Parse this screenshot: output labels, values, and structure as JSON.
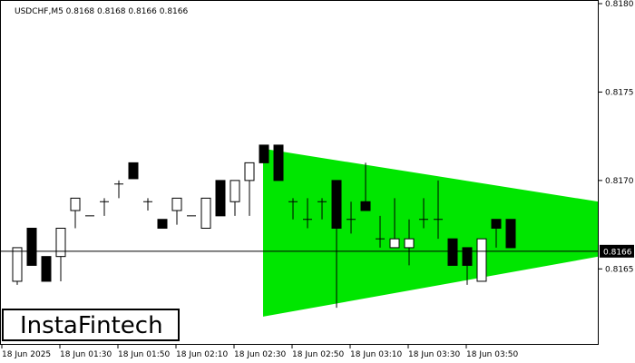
{
  "header": {
    "title": "USDCHF,M5  0.8168 0.8168 0.8166 0.8166"
  },
  "logo": {
    "text": "InstaFintech"
  },
  "colors": {
    "pattern_fill": "#00e600",
    "current_price_line": "#000000",
    "bull_candle": "#ffffff",
    "bear_candle": "#000000"
  },
  "chart_data": {
    "type": "candlestick",
    "symbol": "USDCHF",
    "timeframe": "M5",
    "ylim": [
      0.81605,
      0.818
    ],
    "y_ticks": [
      "0.8180",
      "0.8175",
      "0.8170",
      "0.8165"
    ],
    "current_price": "0.8166",
    "x_ticks": [
      "18 Jun 2025",
      "18 Jun 01:30",
      "18 Jun 01:50",
      "18 Jun 02:10",
      "18 Jun 02:30",
      "18 Jun 02:50",
      "18 Jun 03:10",
      "18 Jun 03:30",
      "18 Jun 03:50"
    ],
    "candles": [
      {
        "o": 0.81643,
        "h": 0.81662,
        "l": 0.81641,
        "c": 0.81662
      },
      {
        "o": 0.81673,
        "h": 0.81673,
        "l": 0.81652,
        "c": 0.81652
      },
      {
        "o": 0.81657,
        "h": 0.81657,
        "l": 0.81643,
        "c": 0.81643
      },
      {
        "o": 0.81657,
        "h": 0.81673,
        "l": 0.81643,
        "c": 0.81673
      },
      {
        "o": 0.81683,
        "h": 0.8169,
        "l": 0.81673,
        "c": 0.8169
      },
      {
        "o": 0.8168,
        "h": 0.8168,
        "l": 0.8168,
        "c": 0.8168
      },
      {
        "o": 0.81688,
        "h": 0.8169,
        "l": 0.8168,
        "c": 0.81688
      },
      {
        "o": 0.81698,
        "h": 0.817,
        "l": 0.8169,
        "c": 0.81698
      },
      {
        "o": 0.8171,
        "h": 0.8171,
        "l": 0.81701,
        "c": 0.81701
      },
      {
        "o": 0.81688,
        "h": 0.8169,
        "l": 0.81683,
        "c": 0.81688
      },
      {
        "o": 0.81678,
        "h": 0.81678,
        "l": 0.81673,
        "c": 0.81673
      },
      {
        "o": 0.81683,
        "h": 0.8169,
        "l": 0.81675,
        "c": 0.8169
      },
      {
        "o": 0.8168,
        "h": 0.8168,
        "l": 0.8168,
        "c": 0.8168
      },
      {
        "o": 0.81673,
        "h": 0.8169,
        "l": 0.81673,
        "c": 0.8169
      },
      {
        "o": 0.817,
        "h": 0.817,
        "l": 0.8168,
        "c": 0.8168
      },
      {
        "o": 0.81688,
        "h": 0.817,
        "l": 0.8168,
        "c": 0.817
      },
      {
        "o": 0.817,
        "h": 0.8171,
        "l": 0.8168,
        "c": 0.8171
      },
      {
        "o": 0.8172,
        "h": 0.8172,
        "l": 0.8171,
        "c": 0.8171
      },
      {
        "o": 0.8172,
        "h": 0.8172,
        "l": 0.817,
        "c": 0.817
      },
      {
        "o": 0.81688,
        "h": 0.8169,
        "l": 0.81678,
        "c": 0.81688
      },
      {
        "o": 0.81678,
        "h": 0.8169,
        "l": 0.81673,
        "c": 0.81678
      },
      {
        "o": 0.81688,
        "h": 0.8169,
        "l": 0.81678,
        "c": 0.81688
      },
      {
        "o": 0.817,
        "h": 0.817,
        "l": 0.81628,
        "c": 0.81673
      },
      {
        "o": 0.81678,
        "h": 0.81688,
        "l": 0.8167,
        "c": 0.81678
      },
      {
        "o": 0.81688,
        "h": 0.8171,
        "l": 0.81683,
        "c": 0.81683
      },
      {
        "o": 0.81667,
        "h": 0.8168,
        "l": 0.81662,
        "c": 0.81667
      },
      {
        "o": 0.81662,
        "h": 0.8169,
        "l": 0.81662,
        "c": 0.81667
      },
      {
        "o": 0.81662,
        "h": 0.81678,
        "l": 0.81652,
        "c": 0.81667
      },
      {
        "o": 0.81678,
        "h": 0.8169,
        "l": 0.81673,
        "c": 0.81678
      },
      {
        "o": 0.81678,
        "h": 0.817,
        "l": 0.81667,
        "c": 0.81678
      },
      {
        "o": 0.81667,
        "h": 0.81667,
        "l": 0.81652,
        "c": 0.81652
      },
      {
        "o": 0.81662,
        "h": 0.81662,
        "l": 0.81641,
        "c": 0.81652
      },
      {
        "o": 0.81643,
        "h": 0.81667,
        "l": 0.81643,
        "c": 0.81667
      },
      {
        "o": 0.81678,
        "h": 0.81678,
        "l": 0.81662,
        "c": 0.81673
      },
      {
        "o": 0.81678,
        "h": 0.81678,
        "l": 0.81662,
        "c": 0.81662
      }
    ],
    "pattern": {
      "type": "triangle",
      "start_index": 17,
      "end_index": 41,
      "upper_start": 0.81718,
      "upper_end": 0.81688,
      "lower_start": 0.81623,
      "lower_end": 0.81657
    }
  }
}
